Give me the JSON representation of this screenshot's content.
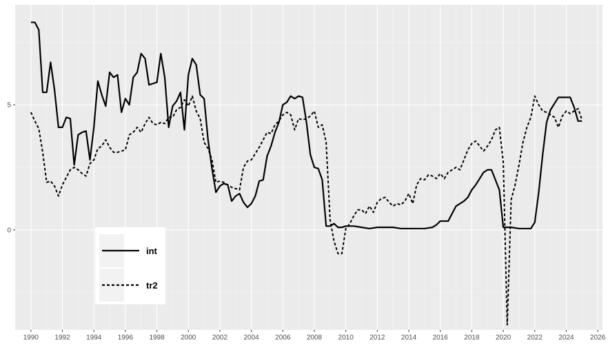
{
  "chart_data": {
    "type": "line",
    "title": "",
    "xlabel": "",
    "ylabel": "",
    "xlim": [
      1989,
      2026.3
    ],
    "ylim": [
      -4.0,
      9.0
    ],
    "x_ticks": [
      "1990",
      "1992",
      "1994",
      "1996",
      "1998",
      "2000",
      "2002",
      "2004",
      "2006",
      "2008",
      "2010",
      "2012",
      "2014",
      "2016",
      "2018",
      "2020",
      "2022",
      "2024",
      "2026"
    ],
    "y_ticks": [
      "0",
      "5"
    ],
    "grid": true,
    "legend_position": "bottom-left",
    "series": [
      {
        "name": "int",
        "style": "solid",
        "color": "#000000",
        "points": [
          [
            1990.0,
            8.3
          ],
          [
            1990.25,
            8.3
          ],
          [
            1990.5,
            8.0
          ],
          [
            1990.75,
            5.5
          ],
          [
            1991.0,
            5.5
          ],
          [
            1991.25,
            6.7
          ],
          [
            1991.5,
            5.6
          ],
          [
            1991.75,
            4.1
          ],
          [
            1992.0,
            4.1
          ],
          [
            1992.25,
            4.5
          ],
          [
            1992.5,
            4.45
          ],
          [
            1992.75,
            2.6
          ],
          [
            1993.0,
            3.8
          ],
          [
            1993.25,
            3.9
          ],
          [
            1993.5,
            3.95
          ],
          [
            1993.75,
            2.8
          ],
          [
            1994.0,
            4.1
          ],
          [
            1994.25,
            5.95
          ],
          [
            1994.5,
            5.4
          ],
          [
            1994.75,
            4.95
          ],
          [
            1995.0,
            6.3
          ],
          [
            1995.25,
            6.1
          ],
          [
            1995.5,
            6.2
          ],
          [
            1995.75,
            4.7
          ],
          [
            1996.0,
            5.25
          ],
          [
            1996.25,
            5.0
          ],
          [
            1996.5,
            6.1
          ],
          [
            1996.75,
            6.3
          ],
          [
            1997.0,
            7.05
          ],
          [
            1997.25,
            6.85
          ],
          [
            1997.5,
            5.8
          ],
          [
            1997.75,
            5.85
          ],
          [
            1998.0,
            5.9
          ],
          [
            1998.25,
            7.05
          ],
          [
            1998.5,
            6.1
          ],
          [
            1998.75,
            4.1
          ],
          [
            1999.0,
            4.95
          ],
          [
            1999.25,
            5.15
          ],
          [
            1999.5,
            5.5
          ],
          [
            1999.75,
            4.0
          ],
          [
            2000.0,
            6.2
          ],
          [
            2000.25,
            6.85
          ],
          [
            2000.5,
            6.6
          ],
          [
            2000.75,
            5.4
          ],
          [
            2001.0,
            5.25
          ],
          [
            2001.25,
            3.6
          ],
          [
            2001.5,
            2.45
          ],
          [
            2001.75,
            1.5
          ],
          [
            2002.0,
            1.75
          ],
          [
            2002.25,
            1.85
          ],
          [
            2002.5,
            1.8
          ],
          [
            2002.75,
            1.15
          ],
          [
            2003.0,
            1.35
          ],
          [
            2003.25,
            1.45
          ],
          [
            2003.5,
            1.1
          ],
          [
            2003.75,
            0.9
          ],
          [
            2004.0,
            1.05
          ],
          [
            2004.25,
            1.35
          ],
          [
            2004.5,
            1.95
          ],
          [
            2004.75,
            2.0
          ],
          [
            2005.0,
            2.95
          ],
          [
            2005.25,
            3.35
          ],
          [
            2005.5,
            3.9
          ],
          [
            2005.75,
            4.3
          ],
          [
            2006.0,
            5.0
          ],
          [
            2006.25,
            5.1
          ],
          [
            2006.5,
            5.35
          ],
          [
            2006.75,
            5.25
          ],
          [
            2007.0,
            5.35
          ],
          [
            2007.25,
            5.3
          ],
          [
            2007.5,
            4.3
          ],
          [
            2007.75,
            3.0
          ],
          [
            2008.0,
            2.5
          ],
          [
            2008.25,
            2.45
          ],
          [
            2008.5,
            2.0
          ],
          [
            2008.75,
            0.15
          ],
          [
            2009.0,
            0.15
          ],
          [
            2009.25,
            0.25
          ],
          [
            2009.5,
            0.1
          ],
          [
            2009.75,
            0.1
          ],
          [
            2010.0,
            0.15
          ],
          [
            2010.5,
            0.15
          ],
          [
            2011.0,
            0.1
          ],
          [
            2011.5,
            0.05
          ],
          [
            2012.0,
            0.1
          ],
          [
            2012.5,
            0.1
          ],
          [
            2013.0,
            0.1
          ],
          [
            2013.5,
            0.05
          ],
          [
            2014.0,
            0.05
          ],
          [
            2014.5,
            0.05
          ],
          [
            2015.0,
            0.05
          ],
          [
            2015.5,
            0.1
          ],
          [
            2015.75,
            0.2
          ],
          [
            2016.0,
            0.35
          ],
          [
            2016.5,
            0.35
          ],
          [
            2016.75,
            0.65
          ],
          [
            2017.0,
            0.95
          ],
          [
            2017.25,
            1.05
          ],
          [
            2017.5,
            1.15
          ],
          [
            2017.75,
            1.3
          ],
          [
            2018.0,
            1.6
          ],
          [
            2018.25,
            1.8
          ],
          [
            2018.5,
            2.05
          ],
          [
            2018.75,
            2.3
          ],
          [
            2019.0,
            2.4
          ],
          [
            2019.25,
            2.4
          ],
          [
            2019.5,
            2.0
          ],
          [
            2019.75,
            1.6
          ],
          [
            2020.0,
            0.1
          ],
          [
            2020.5,
            0.1
          ],
          [
            2021.0,
            0.05
          ],
          [
            2021.5,
            0.05
          ],
          [
            2021.75,
            0.05
          ],
          [
            2022.0,
            0.3
          ],
          [
            2022.25,
            1.5
          ],
          [
            2022.5,
            3.0
          ],
          [
            2022.75,
            4.3
          ],
          [
            2023.0,
            4.8
          ],
          [
            2023.25,
            5.05
          ],
          [
            2023.5,
            5.3
          ],
          [
            2023.75,
            5.3
          ],
          [
            2024.0,
            5.3
          ],
          [
            2024.25,
            5.3
          ],
          [
            2024.5,
            4.9
          ],
          [
            2024.75,
            4.35
          ],
          [
            2025.0,
            4.35
          ]
        ]
      },
      {
        "name": "tr2",
        "style": "dashed",
        "color": "#000000",
        "points": [
          [
            1990.0,
            4.7
          ],
          [
            1990.25,
            4.35
          ],
          [
            1990.5,
            4.05
          ],
          [
            1990.75,
            3.1
          ],
          [
            1991.0,
            1.9
          ],
          [
            1991.25,
            1.95
          ],
          [
            1991.5,
            1.75
          ],
          [
            1991.75,
            1.35
          ],
          [
            1992.0,
            1.8
          ],
          [
            1992.25,
            2.1
          ],
          [
            1992.5,
            2.4
          ],
          [
            1992.75,
            2.5
          ],
          [
            1993.0,
            2.4
          ],
          [
            1993.25,
            2.25
          ],
          [
            1993.5,
            2.15
          ],
          [
            1993.75,
            2.65
          ],
          [
            1994.0,
            2.8
          ],
          [
            1994.25,
            3.25
          ],
          [
            1994.5,
            3.35
          ],
          [
            1994.75,
            3.6
          ],
          [
            1995.0,
            3.3
          ],
          [
            1995.25,
            3.1
          ],
          [
            1995.5,
            3.1
          ],
          [
            1995.75,
            3.15
          ],
          [
            1996.0,
            3.2
          ],
          [
            1996.25,
            3.8
          ],
          [
            1996.5,
            3.9
          ],
          [
            1996.75,
            4.1
          ],
          [
            1997.0,
            3.9
          ],
          [
            1997.25,
            4.25
          ],
          [
            1997.5,
            4.5
          ],
          [
            1997.75,
            4.25
          ],
          [
            1998.0,
            4.2
          ],
          [
            1998.25,
            4.3
          ],
          [
            1998.5,
            4.25
          ],
          [
            1998.75,
            4.5
          ],
          [
            1999.0,
            4.5
          ],
          [
            1999.25,
            4.8
          ],
          [
            1999.5,
            4.9
          ],
          [
            1999.75,
            5.2
          ],
          [
            2000.0,
            4.95
          ],
          [
            2000.25,
            5.35
          ],
          [
            2000.5,
            4.75
          ],
          [
            2000.75,
            4.45
          ],
          [
            2001.0,
            3.5
          ],
          [
            2001.25,
            3.25
          ],
          [
            2001.5,
            2.8
          ],
          [
            2001.75,
            1.9
          ],
          [
            2002.0,
            1.95
          ],
          [
            2002.25,
            1.9
          ],
          [
            2002.5,
            1.8
          ],
          [
            2002.75,
            1.7
          ],
          [
            2003.0,
            1.65
          ],
          [
            2003.25,
            1.6
          ],
          [
            2003.5,
            2.5
          ],
          [
            2003.75,
            2.75
          ],
          [
            2004.0,
            2.8
          ],
          [
            2004.25,
            3.05
          ],
          [
            2004.5,
            3.3
          ],
          [
            2004.75,
            3.6
          ],
          [
            2005.0,
            3.9
          ],
          [
            2005.25,
            3.85
          ],
          [
            2005.5,
            4.2
          ],
          [
            2005.75,
            4.35
          ],
          [
            2006.0,
            4.6
          ],
          [
            2006.25,
            4.7
          ],
          [
            2006.5,
            4.6
          ],
          [
            2006.75,
            4.0
          ],
          [
            2007.0,
            4.45
          ],
          [
            2007.25,
            4.4
          ],
          [
            2007.5,
            4.45
          ],
          [
            2007.75,
            4.55
          ],
          [
            2008.0,
            4.75
          ],
          [
            2008.25,
            4.1
          ],
          [
            2008.5,
            4.2
          ],
          [
            2008.75,
            3.5
          ],
          [
            2009.0,
            0.4
          ],
          [
            2009.25,
            -0.45
          ],
          [
            2009.5,
            -0.95
          ],
          [
            2009.75,
            -0.95
          ],
          [
            2010.0,
            0.05
          ],
          [
            2010.25,
            0.25
          ],
          [
            2010.5,
            0.55
          ],
          [
            2010.75,
            0.8
          ],
          [
            2011.0,
            0.8
          ],
          [
            2011.25,
            0.65
          ],
          [
            2011.5,
            0.95
          ],
          [
            2011.75,
            0.7
          ],
          [
            2012.0,
            1.1
          ],
          [
            2012.25,
            1.25
          ],
          [
            2012.5,
            1.3
          ],
          [
            2012.75,
            1.1
          ],
          [
            2013.0,
            0.95
          ],
          [
            2013.25,
            1.05
          ],
          [
            2013.5,
            1.0
          ],
          [
            2013.75,
            1.15
          ],
          [
            2014.0,
            1.45
          ],
          [
            2014.25,
            1.05
          ],
          [
            2014.5,
            1.8
          ],
          [
            2014.75,
            2.05
          ],
          [
            2015.0,
            2.0
          ],
          [
            2015.25,
            2.2
          ],
          [
            2015.5,
            2.15
          ],
          [
            2015.75,
            2.05
          ],
          [
            2016.0,
            2.25
          ],
          [
            2016.25,
            2.05
          ],
          [
            2016.5,
            2.3
          ],
          [
            2016.75,
            2.4
          ],
          [
            2017.0,
            2.5
          ],
          [
            2017.25,
            2.4
          ],
          [
            2017.5,
            2.8
          ],
          [
            2017.75,
            3.2
          ],
          [
            2018.0,
            3.45
          ],
          [
            2018.25,
            3.55
          ],
          [
            2018.5,
            3.35
          ],
          [
            2018.75,
            3.15
          ],
          [
            2019.0,
            3.35
          ],
          [
            2019.25,
            3.6
          ],
          [
            2019.5,
            4.0
          ],
          [
            2019.75,
            4.1
          ],
          [
            2020.0,
            2.7
          ],
          [
            2020.25,
            -3.8
          ],
          [
            2020.5,
            1.2
          ],
          [
            2020.75,
            1.8
          ],
          [
            2021.0,
            2.6
          ],
          [
            2021.25,
            3.5
          ],
          [
            2021.5,
            4.1
          ],
          [
            2021.75,
            4.5
          ],
          [
            2022.0,
            5.35
          ],
          [
            2022.25,
            5.0
          ],
          [
            2022.5,
            4.75
          ],
          [
            2022.75,
            4.7
          ],
          [
            2023.0,
            4.6
          ],
          [
            2023.25,
            4.5
          ],
          [
            2023.5,
            4.1
          ],
          [
            2023.75,
            4.55
          ],
          [
            2024.0,
            4.75
          ],
          [
            2024.25,
            4.65
          ],
          [
            2024.5,
            4.75
          ],
          [
            2024.75,
            4.85
          ],
          [
            2025.0,
            4.4
          ]
        ]
      }
    ]
  }
}
